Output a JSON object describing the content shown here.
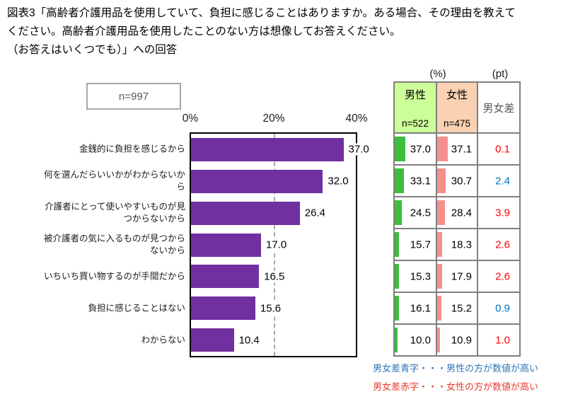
{
  "title": {
    "lines": [
      "図表3「高齢者介護用品を使用していて、負担に感じることはありますか。ある場合、その理由を教えて",
      "ください。高齢者介護用品を使用したことのない方は想像してお答えください。",
      "（お答えはいくつでも）」への回答"
    ]
  },
  "chart_data": {
    "type": "bar",
    "orientation": "horizontal",
    "n_label": "n=997",
    "categories": [
      "金銭的に負担を感じるから",
      "何を選んだらいいかがわからないから",
      "介護者にとって使いやすいものが見つからないから",
      "被介護者の気に入るものが見つからないから",
      "いちいち買い物するのが手間だから",
      "負担に感じることはない",
      "わからない"
    ],
    "values": [
      37.0,
      32.0,
      26.4,
      17.0,
      16.5,
      15.6,
      10.4
    ],
    "value_labels": [
      "37.0",
      "32.0",
      "26.4",
      "17.0",
      "16.5",
      "15.6",
      "10.4"
    ],
    "xlim": [
      0,
      40
    ],
    "x_ticks": [
      "0%",
      "20%",
      "40%"
    ],
    "gridline_at": 20,
    "bar_color": "#7030A0",
    "series": [
      {
        "name": "男性",
        "n": 522,
        "values": [
          37.0,
          33.1,
          24.5,
          15.7,
          15.3,
          16.1,
          10.0
        ]
      },
      {
        "name": "女性",
        "n": 475,
        "values": [
          37.1,
          30.7,
          28.4,
          18.3,
          17.9,
          15.2,
          10.9
        ]
      }
    ],
    "diff_pt": [
      0.1,
      2.4,
      3.9,
      2.6,
      2.6,
      0.9,
      1.0
    ]
  },
  "table": {
    "pct_unit": "(%)",
    "pt_unit": "(pt)",
    "col_male": {
      "label": "男性",
      "n": "n=522"
    },
    "col_female": {
      "label": "女性",
      "n": "n=475"
    },
    "col_diff": {
      "label": "男女差"
    },
    "rows": [
      {
        "male": "37.0",
        "female": "37.1",
        "diff": "0.1",
        "diff_color": "red"
      },
      {
        "male": "33.1",
        "female": "30.7",
        "diff": "2.4",
        "diff_color": "blue"
      },
      {
        "male": "24.5",
        "female": "28.4",
        "diff": "3.9",
        "diff_color": "red"
      },
      {
        "male": "15.7",
        "female": "18.3",
        "diff": "2.6",
        "diff_color": "red"
      },
      {
        "male": "15.3",
        "female": "17.9",
        "diff": "2.6",
        "diff_color": "red"
      },
      {
        "male": "16.1",
        "female": "15.2",
        "diff": "0.9",
        "diff_color": "blue"
      },
      {
        "male": "10.0",
        "female": "10.9",
        "diff": "1.0",
        "diff_color": "red"
      }
    ]
  },
  "notes": [
    {
      "text": "男女差青字・・・男性の方が数値が高い",
      "color_name": "blue"
    },
    {
      "text": "男女差赤字・・・女性の方が数値が高い",
      "color_name": "red"
    }
  ],
  "colors": {
    "bar_purple": "#7030A0",
    "male_green": "#3CBE3C",
    "female_pink": "#F4918F",
    "male_header_bg": "#CCFF99",
    "female_header_bg": "#F9D1B3",
    "table_border": "#7F7F7F",
    "diff_blue": "#0070C0",
    "diff_red": "#FF0000",
    "note_blue": "#2E75B6",
    "note_red": "#E8392D",
    "muted_text": "#595959"
  }
}
